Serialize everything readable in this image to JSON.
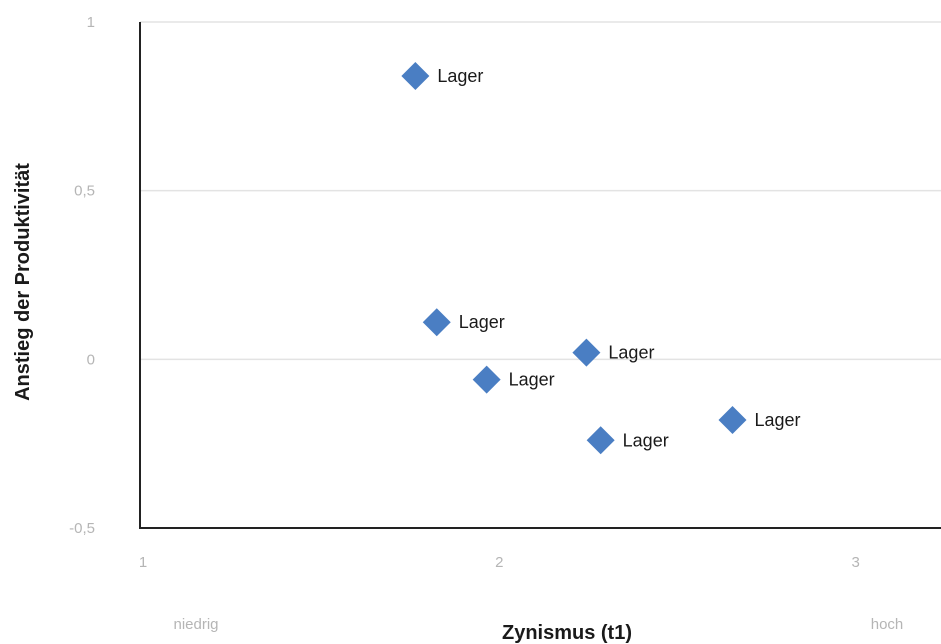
{
  "chart_data": {
    "type": "scatter",
    "title": "",
    "xlabel": "Zynismus (t1)",
    "ylabel": "Anstieg der Produktivität",
    "xlim": [
      1,
      4
    ],
    "ylim": [
      -0.5,
      1
    ],
    "x_ticks": [
      1,
      2,
      3
    ],
    "x_tick_labels": [
      "1",
      "2",
      "3"
    ],
    "y_ticks": [
      1,
      0.5,
      0,
      -0.5
    ],
    "y_tick_labels": [
      "1",
      "0,5",
      "0",
      "-0,5"
    ],
    "x_scale_low": "niedrig",
    "x_scale_high": "hoch",
    "grid": "horizontal",
    "marker": "diamond",
    "marker_color": "#4a7ec3",
    "points": [
      {
        "x": 1.77,
        "y": 0.84,
        "label": "Lager"
      },
      {
        "x": 1.83,
        "y": 0.11,
        "label": "Lager"
      },
      {
        "x": 2.25,
        "y": 0.02,
        "label": "Lager"
      },
      {
        "x": 1.97,
        "y": -0.06,
        "label": "Lager"
      },
      {
        "x": 2.66,
        "y": -0.18,
        "label": "Lager"
      },
      {
        "x": 2.29,
        "y": -0.24,
        "label": "Lager"
      }
    ]
  }
}
